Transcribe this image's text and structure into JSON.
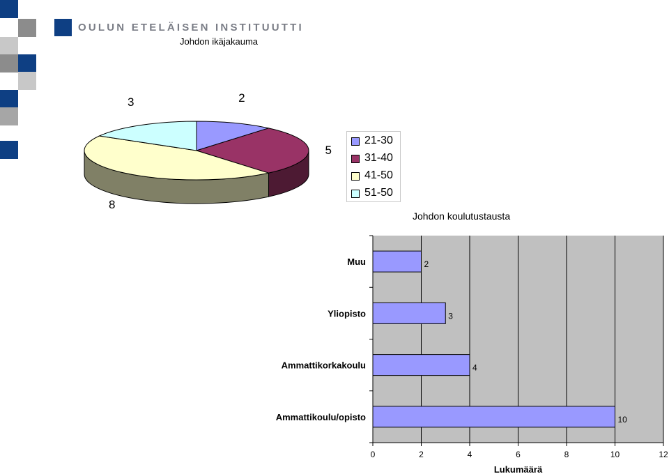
{
  "header": {
    "logo_text": "OULUN ETELÄISEN INSTITUUTTI"
  },
  "chart_data": [
    {
      "type": "pie",
      "title": "Johdon ikäjakauma",
      "categories": [
        "21-30",
        "31-40",
        "41-50",
        "51-50"
      ],
      "values": [
        2,
        5,
        8,
        3
      ],
      "colors": [
        "#9999ff",
        "#993366",
        "#ffffcc",
        "#ccffff"
      ],
      "legend_position": "right",
      "style": "3d"
    },
    {
      "type": "bar",
      "orientation": "horizontal",
      "title": "Johdon koulutustausta",
      "categories": [
        "Muu",
        "Yliopisto",
        "Ammattikorkakoulu",
        "Ammattikoulu/opisto"
      ],
      "values": [
        2,
        3,
        4,
        10
      ],
      "xlabel": "Lukumäärä",
      "xlim": [
        0,
        12
      ],
      "xticks": [
        0,
        2,
        4,
        6,
        8,
        10,
        12
      ],
      "bar_color": "#9999ff",
      "plot_background": "#c0c0c0",
      "grid": true
    }
  ]
}
